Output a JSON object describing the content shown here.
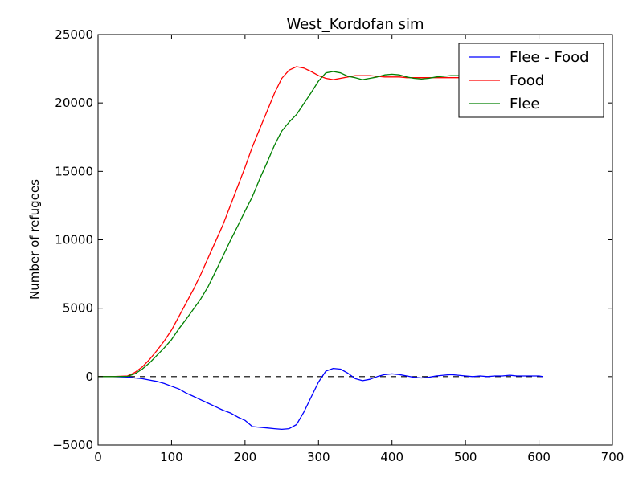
{
  "chart_data": {
    "type": "line",
    "title": "West_Kordofan sim",
    "xlabel": "",
    "ylabel": "Number of refugees",
    "xlim": [
      0,
      700
    ],
    "ylim": [
      -5000,
      25000
    ],
    "xticks": [
      0,
      100,
      200,
      300,
      400,
      500,
      600,
      700
    ],
    "yticks": [
      -5000,
      0,
      5000,
      10000,
      15000,
      20000,
      25000
    ],
    "ytick_labels": [
      "−5000",
      "0",
      "5000",
      "10000",
      "15000",
      "20000",
      "25000"
    ],
    "grid": false,
    "legend_position": "top-right",
    "reference_line": {
      "y": 0,
      "style": "dashed",
      "color": "#000000"
    },
    "x": [
      0,
      20,
      40,
      50,
      60,
      70,
      80,
      90,
      100,
      110,
      120,
      130,
      140,
      150,
      160,
      170,
      180,
      190,
      200,
      210,
      220,
      230,
      240,
      250,
      260,
      270,
      280,
      290,
      300,
      310,
      320,
      330,
      340,
      350,
      360,
      370,
      380,
      390,
      400,
      410,
      420,
      430,
      440,
      450,
      460,
      470,
      480,
      490,
      500,
      510,
      520,
      530,
      540,
      550,
      560,
      570,
      580,
      590,
      600,
      605
    ],
    "series": [
      {
        "name": "Flee - Food",
        "color": "#0000ff",
        "values": [
          0,
          0,
          -30,
          -100,
          -150,
          -250,
          -350,
          -500,
          -700,
          -900,
          -1200,
          -1450,
          -1700,
          -1950,
          -2200,
          -2450,
          -2650,
          -2950,
          -3200,
          -3650,
          -3700,
          -3750,
          -3800,
          -3850,
          -3800,
          -3500,
          -2600,
          -1500,
          -400,
          400,
          600,
          550,
          250,
          -150,
          -300,
          -200,
          0,
          150,
          200,
          150,
          50,
          -50,
          -100,
          -50,
          50,
          100,
          150,
          100,
          50,
          0,
          50,
          0,
          50,
          50,
          100,
          50,
          50,
          50,
          50,
          0
        ]
      },
      {
        "name": "Food",
        "color": "#ff0000",
        "values": [
          0,
          0,
          50,
          300,
          700,
          1250,
          1900,
          2600,
          3400,
          4400,
          5400,
          6400,
          7500,
          8700,
          9900,
          11100,
          12500,
          13900,
          15300,
          16800,
          18100,
          19400,
          20700,
          21800,
          22400,
          22650,
          22550,
          22300,
          22000,
          21800,
          21700,
          21800,
          21900,
          22000,
          22000,
          22000,
          21950,
          21900,
          21900,
          21900,
          21850,
          21850,
          21850,
          21850,
          21850,
          21850,
          21850,
          21850,
          21850,
          21850,
          21850,
          21850,
          21850,
          21850,
          21850,
          21850,
          21850,
          21850,
          21850,
          21850
        ]
      },
      {
        "name": "Flee",
        "color": "#008000",
        "values": [
          0,
          0,
          20,
          200,
          550,
          1000,
          1550,
          2100,
          2700,
          3500,
          4200,
          4950,
          5700,
          6600,
          7700,
          8800,
          9950,
          11000,
          12100,
          13150,
          14450,
          15650,
          16900,
          17950,
          18600,
          19150,
          19950,
          20750,
          21600,
          22200,
          22300,
          22200,
          21950,
          21850,
          21700,
          21800,
          21900,
          22050,
          22100,
          22050,
          21900,
          21800,
          21750,
          21800,
          21900,
          21950,
          22000,
          22000,
          21900,
          21850,
          21900,
          21850,
          21900,
          21900,
          21950,
          21900,
          21900,
          21900,
          21900,
          21850
        ]
      }
    ]
  }
}
